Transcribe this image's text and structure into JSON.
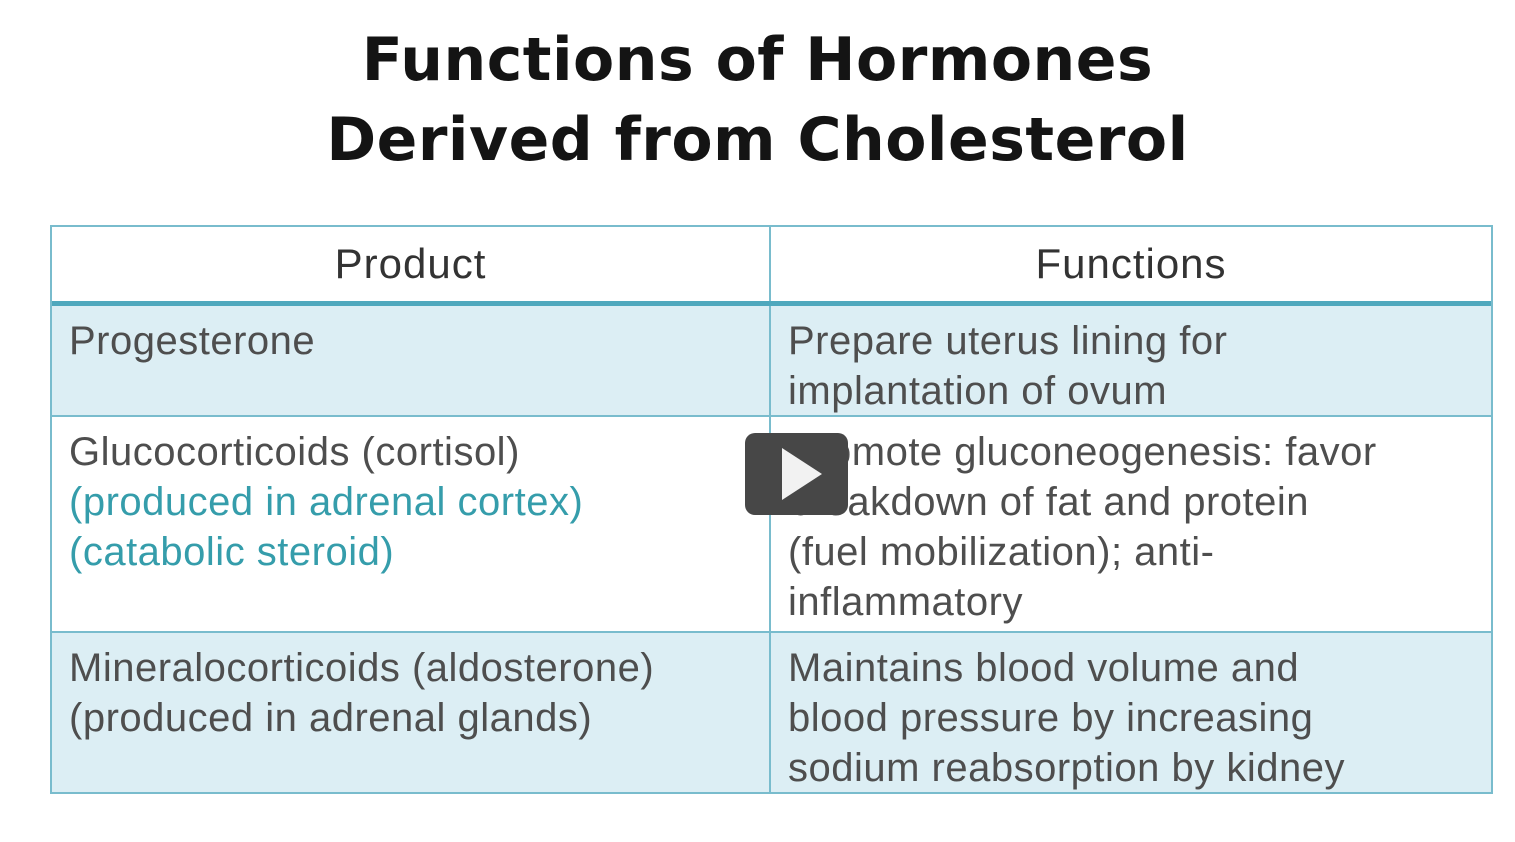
{
  "title": {
    "line1": "Functions of Hormones",
    "line2": "Derived from Cholesterol"
  },
  "table": {
    "headers": {
      "product": "Product",
      "functions": "Functions"
    },
    "rows": [
      {
        "product": [
          "Progesterone"
        ],
        "functions": [
          "Prepare uterus lining for",
          "implantation of ovum"
        ]
      },
      {
        "product": [
          "Glucocorticoids (cortisol)",
          "(produced in adrenal cortex)",
          "(catabolic steroid)"
        ],
        "functions": [
          "Promote gluconeogenesis: favor",
          "breakdown of fat and protein",
          "(fuel mobilization); anti-",
          "inflammatory"
        ]
      },
      {
        "product": [
          "Mineralocorticoids (aldosterone)",
          "(produced in adrenal glands)"
        ],
        "functions": [
          "Maintains blood volume and",
          "blood pressure by increasing",
          "sodium reabsorption by kidney"
        ]
      }
    ]
  },
  "player": {
    "play_icon": "play-triangle"
  },
  "colors": {
    "row-blue": "#dceef4",
    "border-light": "#79bccd",
    "border-strong": "#4fa8bd",
    "teal-text": "#359dab",
    "body-text": "#4e4e4e",
    "title-text": "#141414",
    "play-bg": "#474747",
    "play-icon": "#f2f2f2"
  }
}
